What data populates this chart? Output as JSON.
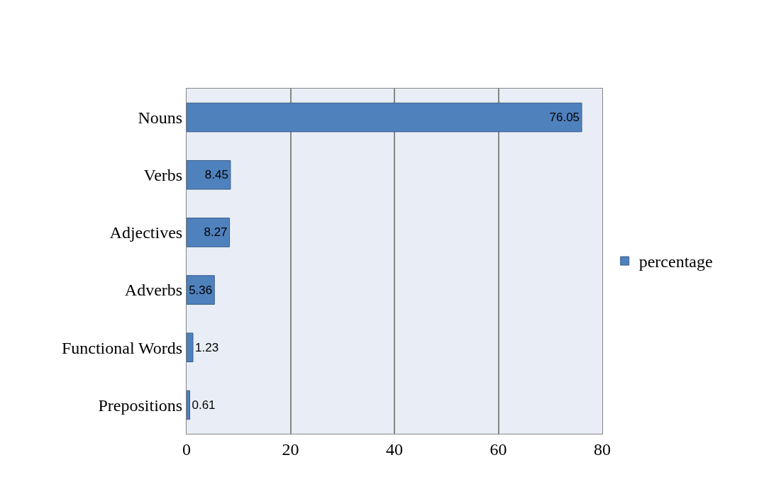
{
  "chart_data": {
    "type": "bar",
    "orientation": "horizontal",
    "categories": [
      "Nouns",
      "Verbs",
      "Adjectives",
      "Adverbs",
      "Functional Words",
      "Prepositions"
    ],
    "series": [
      {
        "name": "percentage",
        "color": "#4f81bd",
        "values": [
          76.05,
          8.45,
          8.27,
          5.36,
          1.23,
          0.61
        ]
      }
    ],
    "xlim": [
      0,
      80
    ],
    "xticks": [
      0,
      20,
      40,
      60,
      80
    ],
    "grid": "x",
    "legend": "right",
    "data_labels": true
  }
}
